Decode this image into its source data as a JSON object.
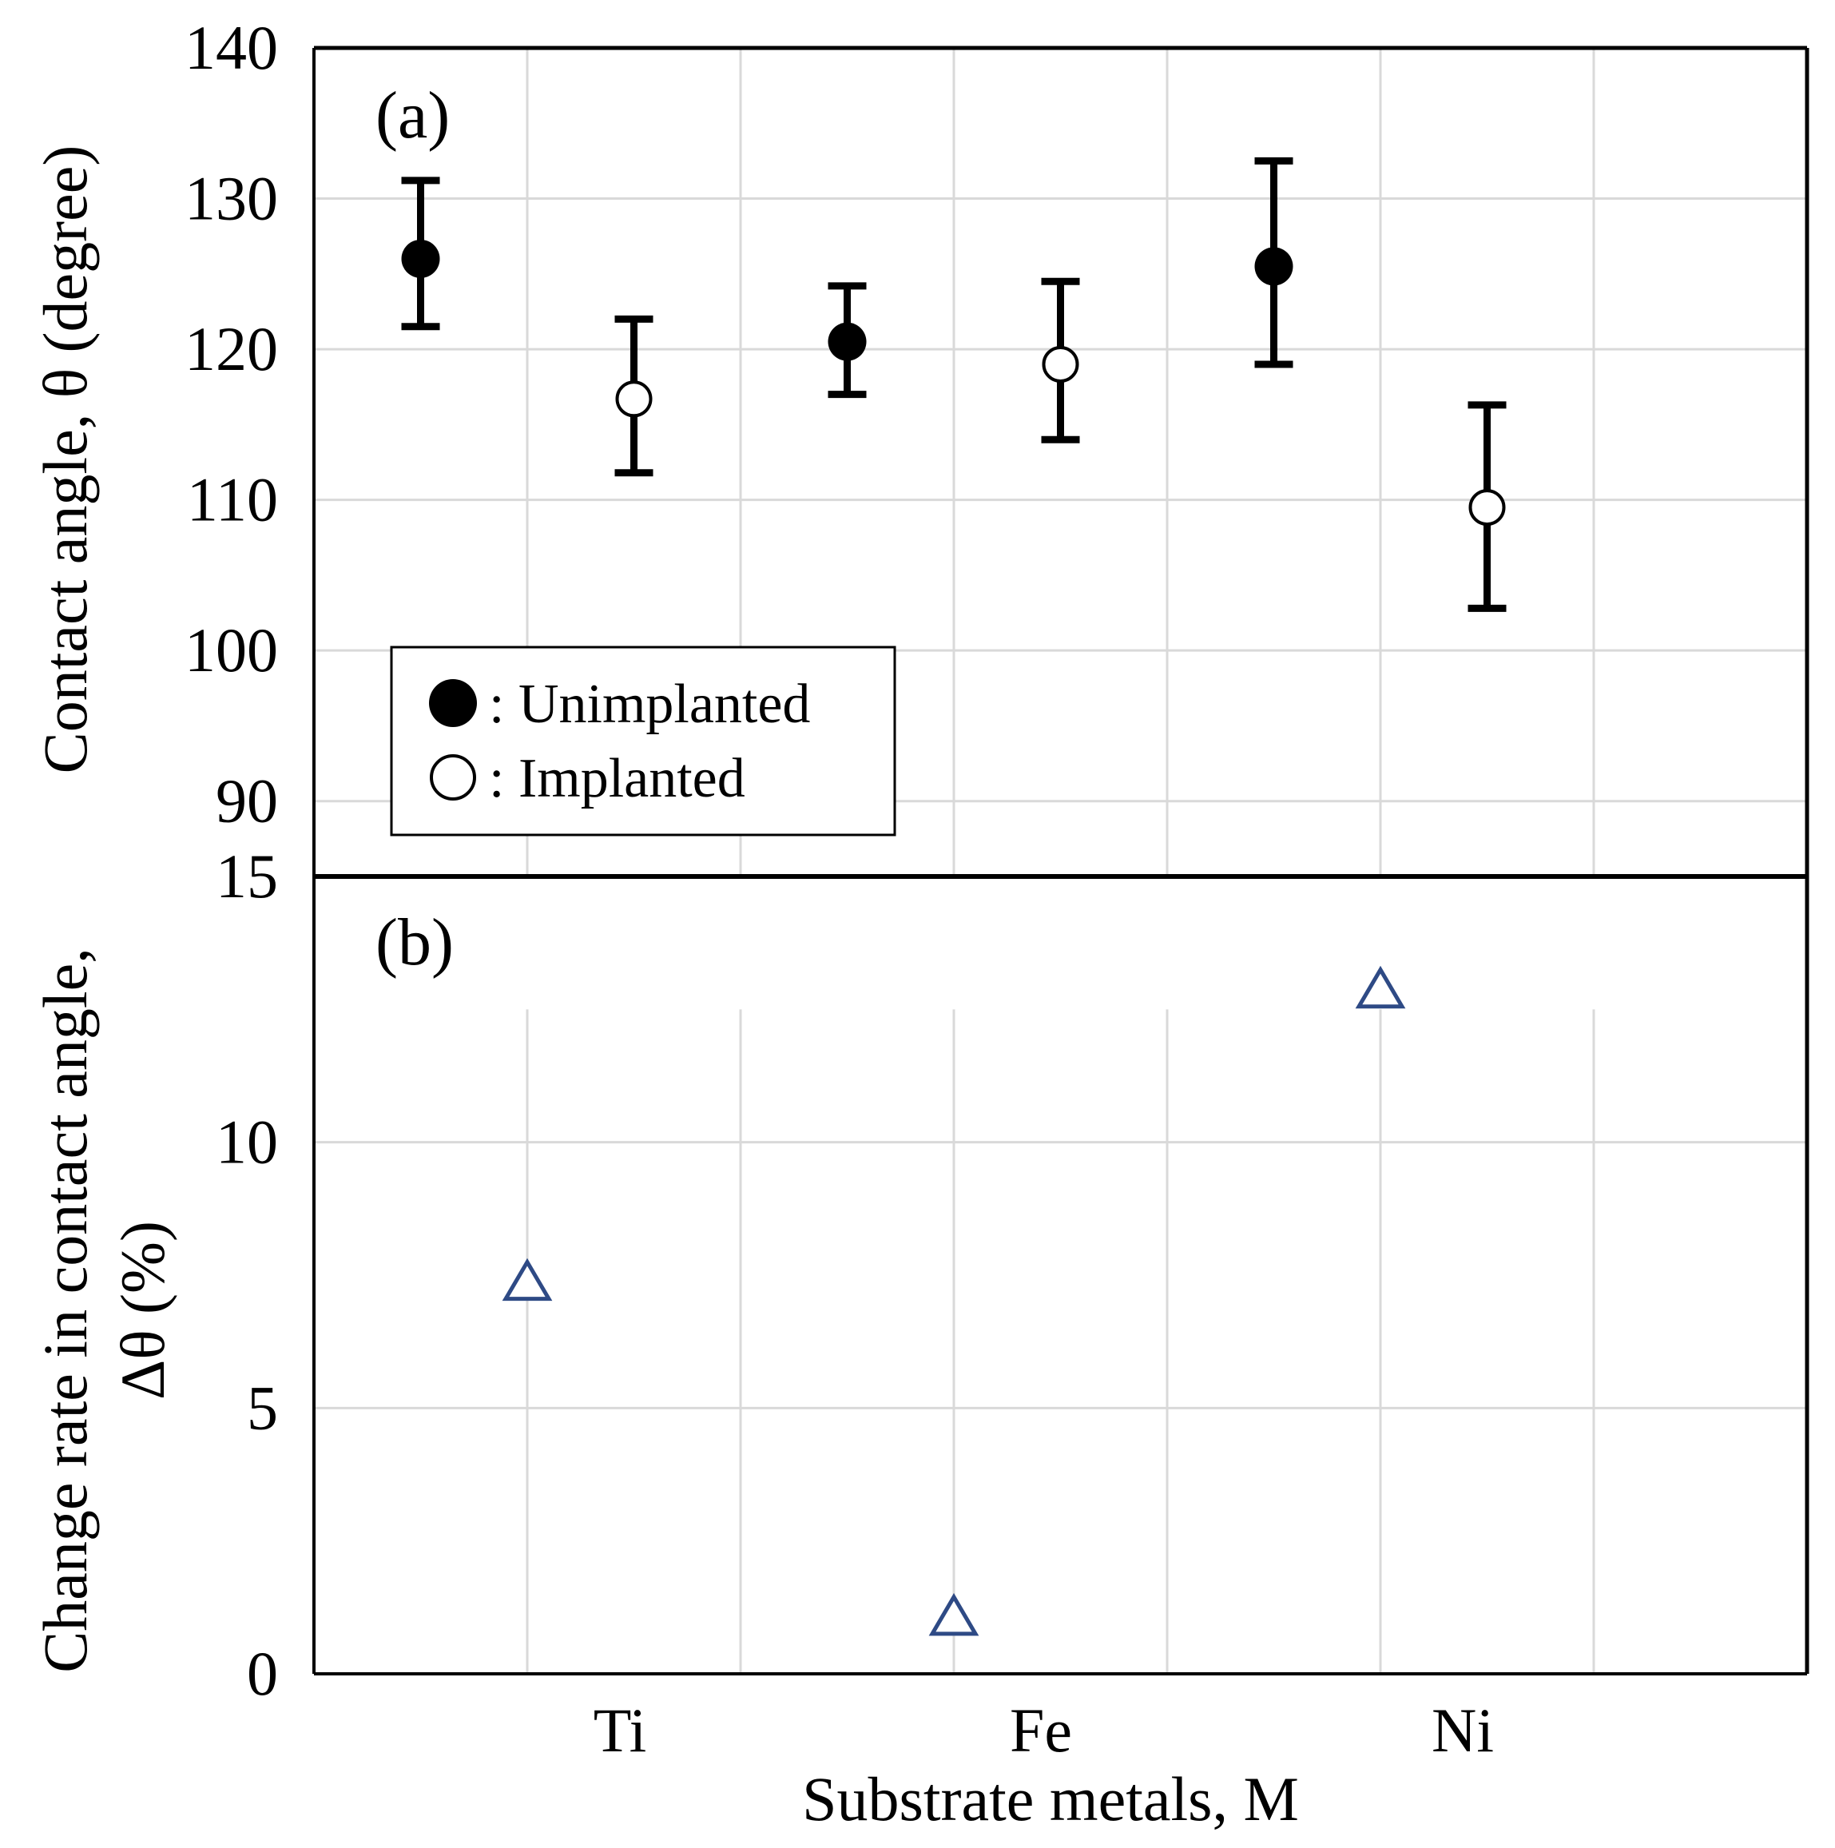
{
  "chart_data": [
    {
      "panel": "(a)",
      "type": "scatter",
      "ylabel": "Contact angle, θ (degree)",
      "ylim": [
        85,
        140
      ],
      "yticks": [
        90,
        100,
        110,
        120,
        130,
        140
      ],
      "categories": [
        "Ti",
        "Fe",
        "Ni"
      ],
      "series": [
        {
          "name": "Unimplanted",
          "legend_label": ": Unimplanted",
          "marker": "filled-circle",
          "x": [
            0.5,
            2.5,
            4.5
          ],
          "values": [
            126.0,
            120.5,
            125.5
          ],
          "err_low": [
            121.5,
            117.0,
            119.0
          ],
          "err_high": [
            131.2,
            124.2,
            132.5
          ]
        },
        {
          "name": "Implanted",
          "legend_label": ": Implanted",
          "marker": "open-circle",
          "x": [
            1.5,
            3.5,
            5.5
          ],
          "values": [
            116.7,
            119.0,
            109.5
          ],
          "err_low": [
            111.8,
            114.0,
            102.8
          ],
          "err_high": [
            122.0,
            124.5,
            116.3
          ]
        }
      ],
      "legend_position": "lower-left"
    },
    {
      "panel": "(b)",
      "type": "scatter",
      "ylabel_line1": "Change rate in contact angle,",
      "ylabel_line2": "Δθ (%)",
      "xlabel": "Substrate metals, M",
      "ylim": [
        0,
        15
      ],
      "yticks": [
        0,
        5,
        10,
        15
      ],
      "categories": [
        "Ti",
        "Fe",
        "Ni"
      ],
      "series": [
        {
          "name": "Change rate",
          "marker": "open-triangle",
          "color": "#2e4a85",
          "x": [
            1.0,
            3.0,
            5.0
          ],
          "values": [
            7.4,
            1.1,
            12.9
          ]
        }
      ]
    }
  ]
}
